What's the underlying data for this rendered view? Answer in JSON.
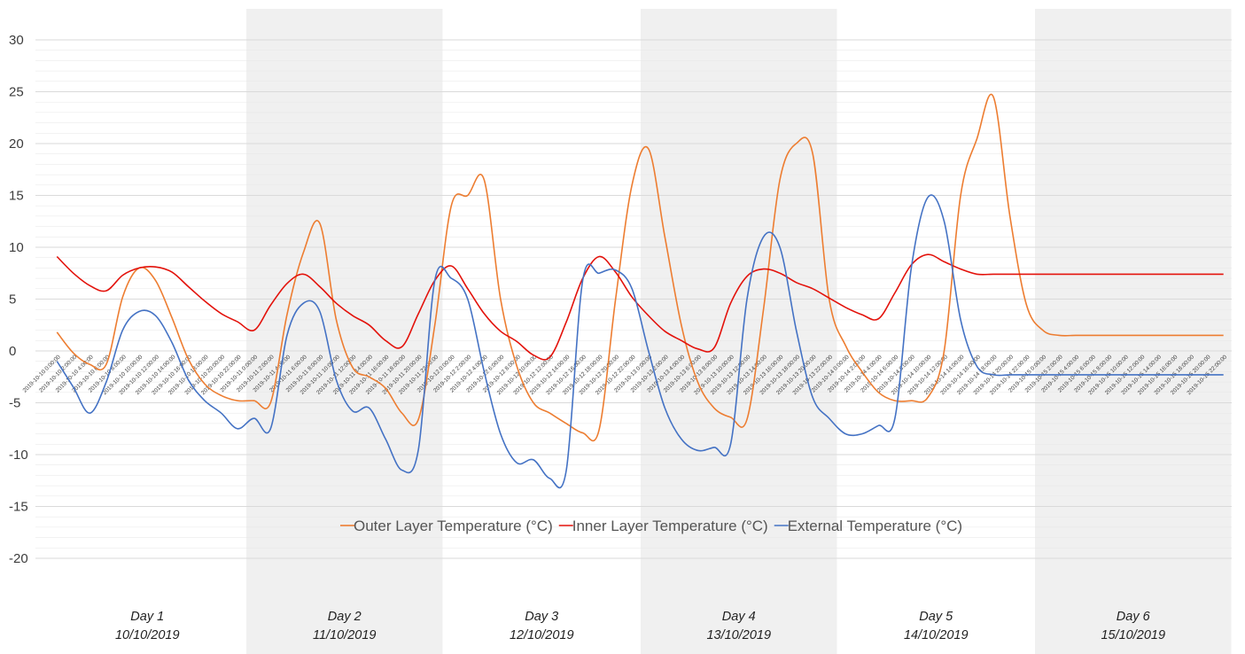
{
  "chart_data": {
    "type": "line",
    "title": "",
    "xlabel": "",
    "ylabel": "",
    "ylim": [
      -20,
      30
    ],
    "y_ticks": [
      -20,
      -15,
      -10,
      -5,
      0,
      5,
      10,
      15,
      20,
      25,
      30
    ],
    "grid": "horizontal",
    "legend_position": "bottom (inside plot)",
    "x": [
      "2019-10-10 0:00:00",
      "2019-10-10 2:00:00",
      "2019-10-10 4:00:00",
      "2019-10-10 6:00:00",
      "2019-10-10 8:00:00",
      "2019-10-10 10:00:00",
      "2019-10-10 12:00:00",
      "2019-10-10 14:00:00",
      "2019-10-10 16:00:00",
      "2019-10-10 18:00:00",
      "2019-10-10 20:00:00",
      "2019-10-10 22:00:00",
      "2019-10-11 0:00:00",
      "2019-10-11 2:00:00",
      "2019-10-11 4:00:00",
      "2019-10-11 6:00:00",
      "2019-10-11 8:00:00",
      "2019-10-11 10:00:00",
      "2019-10-11 12:00:00",
      "2019-10-11 14:00:00",
      "2019-10-11 16:00:00",
      "2019-10-11 18:00:00",
      "2019-10-11 20:00:00",
      "2019-10-11 22:00:00",
      "2019-10-12 0:00:00",
      "2019-10-12 2:00:00",
      "2019-10-12 4:00:00",
      "2019-10-12 6:00:00",
      "2019-10-12 8:00:00",
      "2019-10-12 10:00:00",
      "2019-10-12 12:00:00",
      "2019-10-12 14:00:00",
      "2019-10-12 16:00:00",
      "2019-10-12 18:00:00",
      "2019-10-12 20:00:00",
      "2019-10-12 22:00:00",
      "2019-10-13 0:00:00",
      "2019-10-13 2:00:00",
      "2019-10-13 4:00:00",
      "2019-10-13 6:00:00",
      "2019-10-13 8:00:00",
      "2019-10-13 10:00:00",
      "2019-10-13 12:00:00",
      "2019-10-13 14:00:00",
      "2019-10-13 16:00:00",
      "2019-10-13 18:00:00",
      "2019-10-13 20:00:00",
      "2019-10-13 22:00:00",
      "2019-10-14 0:00:00",
      "2019-10-14 2:00:00",
      "2019-10-14 4:00:00",
      "2019-10-14 6:00:00",
      "2019-10-14 8:00:00",
      "2019-10-14 10:00:00",
      "2019-10-14 12:00:00",
      "2019-10-14 14:00:00",
      "2019-10-14 16:00:00",
      "2019-10-14 18:00:00",
      "2019-10-14 20:00:00",
      "2019-10-14 22:00:00",
      "2019-10-15 0:00:00",
      "2019-10-15 2:00:00",
      "2019-10-15 4:00:00",
      "2019-10-15 6:00:00",
      "2019-10-15 8:00:00",
      "2019-10-15 10:00:00",
      "2019-10-15 12:00:00",
      "2019-10-15 14:00:00",
      "2019-10-15 16:00:00",
      "2019-10-15 18:00:00",
      "2019-10-15 20:00:00",
      "2019-10-15 22:00:00"
    ],
    "series": [
      {
        "name": "Outer Layer Temperature (°C)",
        "color": "#ED7D31",
        "values": [
          1.8,
          -0.2,
          -1.3,
          -1.3,
          5.2,
          8.0,
          6.8,
          3.2,
          -0.8,
          -3.2,
          -4.3,
          -4.8,
          -4.8,
          -5.0,
          3.5,
          9.5,
          12.3,
          3.0,
          -1.6,
          -2.5,
          -3.6,
          -6.0,
          -6.6,
          2.5,
          14.0,
          15.0,
          16.5,
          5.0,
          -1.5,
          -5.0,
          -6.0,
          -7.0,
          -7.9,
          -7.6,
          5.0,
          16.0,
          19.5,
          11.0,
          2.5,
          -3.0,
          -5.5,
          -6.4,
          -6.6,
          4.0,
          16.5,
          20.0,
          19.0,
          5.0,
          0.5,
          -2.0,
          -4.0,
          -4.8,
          -4.8,
          -4.5,
          0.0,
          15.0,
          20.5,
          24.5,
          13.0,
          4.5,
          2.0,
          1.5,
          1.5,
          1.5,
          1.5,
          1.5,
          1.5,
          1.5,
          1.5,
          1.5,
          1.5,
          1.5
        ]
      },
      {
        "name": "Inner Layer Temperature (°C)",
        "color": "#E3120B",
        "values": [
          9.1,
          7.5,
          6.3,
          5.8,
          7.3,
          8.0,
          8.1,
          7.6,
          6.2,
          4.8,
          3.6,
          2.8,
          2.0,
          4.4,
          6.5,
          7.4,
          6.2,
          4.6,
          3.4,
          2.5,
          1.0,
          0.4,
          3.6,
          6.8,
          8.2,
          6.0,
          3.6,
          1.9,
          0.9,
          -0.4,
          -0.6,
          2.8,
          7.0,
          9.1,
          7.6,
          5.2,
          3.4,
          1.9,
          1.0,
          0.2,
          0.3,
          4.6,
          7.2,
          7.9,
          7.5,
          6.6,
          6.0,
          5.1,
          4.2,
          3.5,
          3.1,
          5.6,
          8.3,
          9.3,
          8.6,
          7.9,
          7.4,
          7.4,
          7.4,
          7.4,
          7.4,
          7.4,
          7.4,
          7.4,
          7.4,
          7.4,
          7.4,
          7.4,
          7.4,
          7.4,
          7.4,
          7.4
        ]
      },
      {
        "name": "External Temperature (°C)",
        "color": "#4472C4",
        "values": [
          -1.0,
          -3.5,
          -6.0,
          -3.0,
          2.0,
          3.8,
          3.4,
          0.8,
          -2.8,
          -4.8,
          -6.0,
          -7.5,
          -6.5,
          -7.5,
          1.5,
          4.6,
          3.8,
          -2.8,
          -5.8,
          -5.5,
          -8.5,
          -11.5,
          -9.5,
          6.8,
          7.0,
          5.0,
          -2.0,
          -8.0,
          -10.8,
          -10.5,
          -12.3,
          -11.5,
          6.8,
          7.5,
          7.8,
          6.0,
          0.0,
          -5.5,
          -8.5,
          -9.6,
          -9.3,
          -9.0,
          5.0,
          11.0,
          10.0,
          2.0,
          -4.5,
          -6.5,
          -8.0,
          -8.0,
          -7.2,
          -6.5,
          8.0,
          14.8,
          12.5,
          3.0,
          -1.5,
          -2.3,
          -2.3,
          -2.3,
          -2.3,
          -2.3,
          -2.3,
          -2.3,
          -2.3,
          -2.3,
          -2.3,
          -2.3,
          -2.3,
          -2.3,
          -2.3,
          -2.3
        ]
      }
    ],
    "days": [
      {
        "label": "Day 1",
        "date": "10/10/2019",
        "shaded": false
      },
      {
        "label": "Day 2",
        "date": "11/10/2019",
        "shaded": true
      },
      {
        "label": "Day 3",
        "date": "12/10/2019",
        "shaded": false
      },
      {
        "label": "Day 4",
        "date": "13/10/2019",
        "shaded": true
      },
      {
        "label": "Day 5",
        "date": "14/10/2019",
        "shaded": false
      },
      {
        "label": "Day 6",
        "date": "15/10/2019",
        "shaded": true
      }
    ],
    "shade_color": "#F0F0F0",
    "grid_color": "#E6E6E6"
  }
}
